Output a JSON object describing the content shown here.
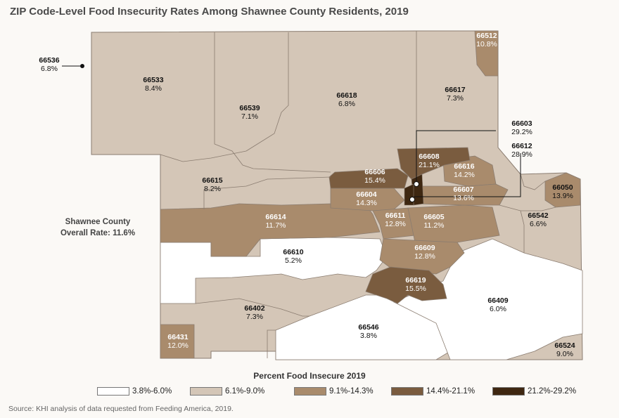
{
  "title": "ZIP Code-Level Food Insecurity Rates Among Shawnee County Residents, 2019",
  "overall": {
    "line1": "Shawnee County",
    "line2": "Overall Rate: 11.6%"
  },
  "legend": {
    "title": "Percent Food Insecure 2019",
    "items": [
      {
        "label": "3.8%-6.0%",
        "color": "#ffffff"
      },
      {
        "label": "6.1%-9.0%",
        "color": "#d4c6b7"
      },
      {
        "label": "9.1%-14.3%",
        "color": "#a98b6c"
      },
      {
        "label": "14.4%-21.1%",
        "color": "#7a5c3f"
      },
      {
        "label": "21.2%-29.2%",
        "color": "#3e2711"
      }
    ]
  },
  "zips": [
    {
      "zip": "66536",
      "rate": "6.8%"
    },
    {
      "zip": "66533",
      "rate": "8.4%"
    },
    {
      "zip": "66539",
      "rate": "7.1%"
    },
    {
      "zip": "66618",
      "rate": "6.8%"
    },
    {
      "zip": "66617",
      "rate": "7.3%"
    },
    {
      "zip": "66512",
      "rate": "10.8%"
    },
    {
      "zip": "66603",
      "rate": "29.2%"
    },
    {
      "zip": "66612",
      "rate": "28.9%"
    },
    {
      "zip": "66608",
      "rate": "21.1%"
    },
    {
      "zip": "66616",
      "rate": "14.2%"
    },
    {
      "zip": "66606",
      "rate": "15.4%"
    },
    {
      "zip": "66604",
      "rate": "14.3%"
    },
    {
      "zip": "66607",
      "rate": "13.6%"
    },
    {
      "zip": "66050",
      "rate": "13.9%"
    },
    {
      "zip": "66615",
      "rate": "8.2%"
    },
    {
      "zip": "66614",
      "rate": "11.7%"
    },
    {
      "zip": "66611",
      "rate": "12.8%"
    },
    {
      "zip": "66605",
      "rate": "11.2%"
    },
    {
      "zip": "66542",
      "rate": "6.6%"
    },
    {
      "zip": "66610",
      "rate": "5.2%"
    },
    {
      "zip": "66609",
      "rate": "12.8%"
    },
    {
      "zip": "66619",
      "rate": "15.5%"
    },
    {
      "zip": "66409",
      "rate": "6.0%"
    },
    {
      "zip": "66402",
      "rate": "7.3%"
    },
    {
      "zip": "66546",
      "rate": "3.8%"
    },
    {
      "zip": "66431",
      "rate": "12.0%"
    },
    {
      "zip": "66524",
      "rate": "9.0%"
    }
  ],
  "source": "Source: KHI analysis of data requested from Feeding America, 2019."
}
